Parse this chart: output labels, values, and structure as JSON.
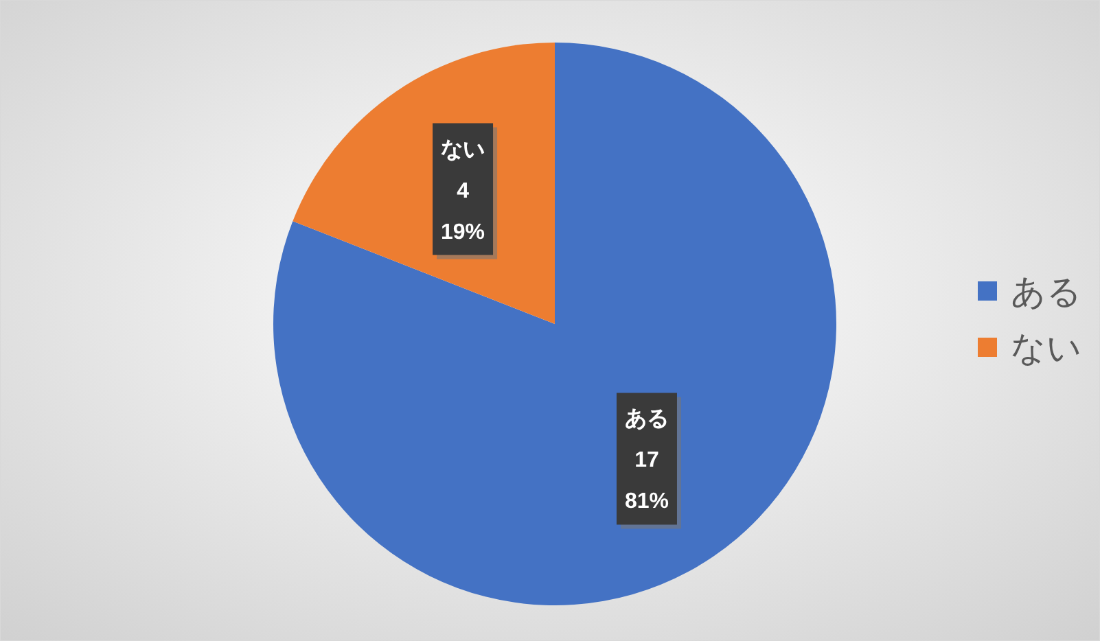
{
  "chart_data": {
    "type": "pie",
    "categories": [
      "ある",
      "ない"
    ],
    "values": [
      17,
      4
    ],
    "colors": [
      "#4472c4",
      "#ed7d31"
    ],
    "value_labels": [
      "ある\n17\n81%",
      "ない\n4\n19%"
    ],
    "legend": "right"
  }
}
